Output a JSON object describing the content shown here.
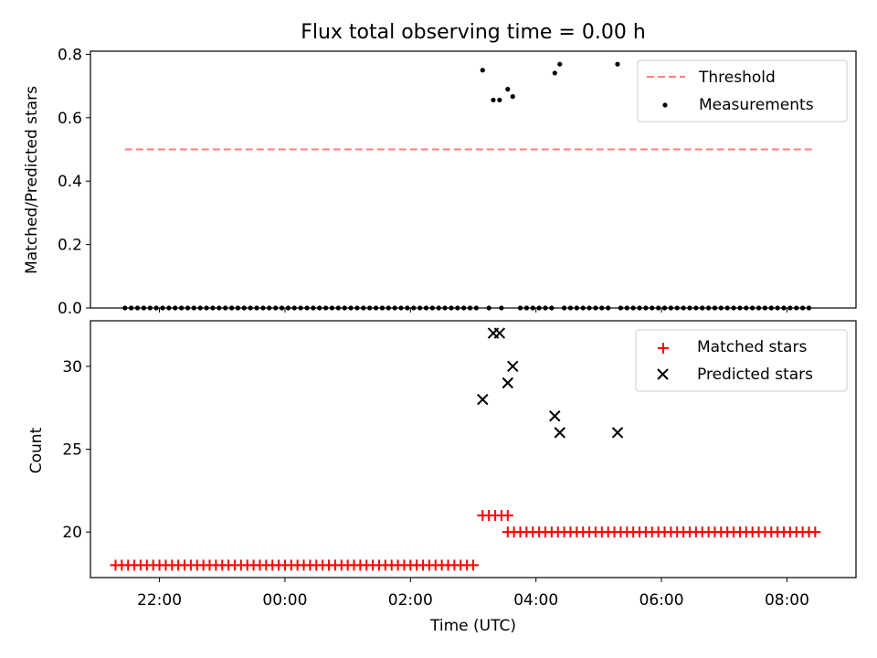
{
  "chart_data": [
    {
      "type": "scatter",
      "title": "Flux total observing time = 0.00 h",
      "xlabel": "",
      "ylabel": "Matched/Predicted stars",
      "xlim_hours": [
        -3.1,
        9.1
      ],
      "ylim": [
        0.0,
        0.81
      ],
      "yticks": [
        0.0,
        0.2,
        0.4,
        0.6,
        0.8
      ],
      "ytick_labels": [
        "0.0",
        "0.2",
        "0.4",
        "0.6",
        "0.8"
      ],
      "grid": false,
      "legend": {
        "placement": "upper right",
        "entries": [
          "Threshold",
          "Measurements"
        ]
      },
      "series": [
        {
          "name": "Threshold",
          "kind": "dashed-line",
          "color": "#ff7f7f",
          "x_range_hours": [
            -2.55,
            8.4
          ],
          "y": 0.5
        },
        {
          "name": "Measurements",
          "kind": "points",
          "color": "#000000",
          "points": [
            [
              -2.55,
              0
            ],
            [
              -2.45,
              0
            ],
            [
              -2.35,
              0
            ],
            [
              -2.25,
              0
            ],
            [
              -2.15,
              0
            ],
            [
              -2.05,
              0
            ],
            [
              -1.95,
              0
            ],
            [
              -1.85,
              0
            ],
            [
              -1.75,
              0
            ],
            [
              -1.65,
              0
            ],
            [
              -1.55,
              0
            ],
            [
              -1.45,
              0
            ],
            [
              -1.35,
              0
            ],
            [
              -1.25,
              0
            ],
            [
              -1.15,
              0
            ],
            [
              -1.05,
              0
            ],
            [
              -0.95,
              0
            ],
            [
              -0.85,
              0
            ],
            [
              -0.75,
              0
            ],
            [
              -0.65,
              0
            ],
            [
              -0.55,
              0
            ],
            [
              -0.45,
              0
            ],
            [
              -0.35,
              0
            ],
            [
              -0.25,
              0
            ],
            [
              -0.15,
              0
            ],
            [
              -0.05,
              0
            ],
            [
              0.05,
              0
            ],
            [
              0.15,
              0
            ],
            [
              0.25,
              0
            ],
            [
              0.35,
              0
            ],
            [
              0.45,
              0
            ],
            [
              0.55,
              0
            ],
            [
              0.65,
              0
            ],
            [
              0.75,
              0
            ],
            [
              0.85,
              0
            ],
            [
              0.95,
              0
            ],
            [
              1.05,
              0
            ],
            [
              1.15,
              0
            ],
            [
              1.25,
              0
            ],
            [
              1.35,
              0
            ],
            [
              1.45,
              0
            ],
            [
              1.55,
              0
            ],
            [
              1.65,
              0
            ],
            [
              1.75,
              0
            ],
            [
              1.85,
              0
            ],
            [
              1.95,
              0
            ],
            [
              2.05,
              0
            ],
            [
              2.15,
              0
            ],
            [
              2.25,
              0
            ],
            [
              2.35,
              0
            ],
            [
              2.45,
              0
            ],
            [
              2.55,
              0
            ],
            [
              2.65,
              0
            ],
            [
              2.75,
              0
            ],
            [
              2.85,
              0
            ],
            [
              2.95,
              0
            ],
            [
              3.05,
              0
            ],
            [
              3.25,
              0
            ],
            [
              3.45,
              0
            ],
            [
              3.75,
              0
            ],
            [
              3.85,
              0
            ],
            [
              3.95,
              0
            ],
            [
              4.05,
              0
            ],
            [
              4.15,
              0
            ],
            [
              4.25,
              0
            ],
            [
              4.45,
              0
            ],
            [
              4.55,
              0
            ],
            [
              4.65,
              0
            ],
            [
              4.75,
              0
            ],
            [
              4.85,
              0
            ],
            [
              4.95,
              0
            ],
            [
              5.05,
              0
            ],
            [
              5.15,
              0
            ],
            [
              5.35,
              0
            ],
            [
              5.45,
              0
            ],
            [
              5.55,
              0
            ],
            [
              5.65,
              0
            ],
            [
              5.75,
              0
            ],
            [
              5.85,
              0
            ],
            [
              5.95,
              0
            ],
            [
              6.05,
              0
            ],
            [
              6.15,
              0
            ],
            [
              6.25,
              0
            ],
            [
              6.35,
              0
            ],
            [
              6.45,
              0
            ],
            [
              6.55,
              0
            ],
            [
              6.65,
              0
            ],
            [
              6.75,
              0
            ],
            [
              6.85,
              0
            ],
            [
              6.95,
              0
            ],
            [
              7.05,
              0
            ],
            [
              7.15,
              0
            ],
            [
              7.25,
              0
            ],
            [
              7.35,
              0
            ],
            [
              7.45,
              0
            ],
            [
              7.55,
              0
            ],
            [
              7.65,
              0
            ],
            [
              7.75,
              0
            ],
            [
              7.85,
              0
            ],
            [
              7.95,
              0
            ],
            [
              8.05,
              0
            ],
            [
              8.15,
              0
            ],
            [
              8.25,
              0
            ],
            [
              8.35,
              0
            ],
            [
              3.15,
              0.75
            ],
            [
              3.32,
              0.656
            ],
            [
              3.42,
              0.656
            ],
            [
              3.55,
              0.69
            ],
            [
              3.63,
              0.667
            ],
            [
              4.3,
              0.741
            ],
            [
              4.38,
              0.769
            ],
            [
              5.3,
              0.769
            ]
          ]
        }
      ]
    },
    {
      "type": "scatter",
      "title": "",
      "xlabel": "Time (UTC)",
      "ylabel": "Count",
      "xlim_hours": [
        -3.1,
        9.1
      ],
      "ylim": [
        17.25,
        32.75
      ],
      "yticks": [
        20,
        25,
        30
      ],
      "ytick_labels": [
        "20",
        "25",
        "30"
      ],
      "xticks_hours": [
        -2,
        0,
        2,
        4,
        6,
        8
      ],
      "xtick_labels": [
        "22:00",
        "00:00",
        "02:00",
        "04:00",
        "06:00",
        "08:00"
      ],
      "grid": false,
      "legend": {
        "placement": "upper right",
        "entries": [
          "Matched stars",
          "Predicted stars"
        ]
      },
      "series": [
        {
          "name": "Matched stars",
          "marker": "+",
          "color": "#ff0000",
          "runs": [
            {
              "y": 18,
              "x_start": -2.7,
              "x_end": 3.05,
              "step": 0.1
            },
            {
              "y": 21,
              "x_start": 3.15,
              "x_end": 3.55,
              "step": 0.1
            },
            {
              "y": 20,
              "x_start": 3.55,
              "x_end": 8.45,
              "step": 0.1
            }
          ]
        },
        {
          "name": "Predicted stars",
          "marker": "x",
          "color": "#000000",
          "points": [
            [
              3.15,
              28
            ],
            [
              3.32,
              32
            ],
            [
              3.42,
              32
            ],
            [
              3.55,
              29
            ],
            [
              3.63,
              30
            ],
            [
              4.3,
              27
            ],
            [
              4.38,
              26
            ],
            [
              5.3,
              26
            ]
          ]
        }
      ]
    }
  ]
}
